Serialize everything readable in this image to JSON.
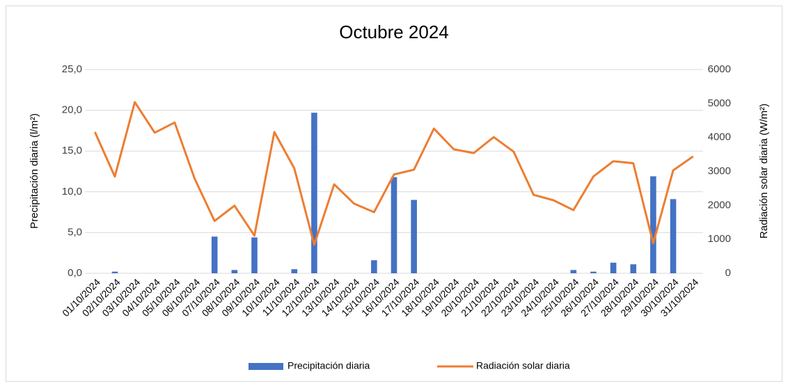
{
  "chart_data": {
    "type": "combo",
    "title": "Octubre 2024",
    "y_label": "Precipitación diaria (l/m²)",
    "y2_label": "Radiación solar diaria (W/m²)",
    "categories": [
      "01/10/2024",
      "02/10/2024",
      "03/10/2024",
      "04/10/2024",
      "05/10/2024",
      "06/10/2024",
      "07/10/2024",
      "08/10/2024",
      "09/10/2024",
      "10/10/2024",
      "11/10/2024",
      "12/10/2024",
      "13/10/2024",
      "14/10/2024",
      "15/10/2024",
      "16/10/2024",
      "17/10/2024",
      "18/10/2024",
      "19/10/2024",
      "20/10/2024",
      "21/10/2024",
      "22/10/2024",
      "23/10/2024",
      "24/10/2024",
      "25/10/2024",
      "26/10/2024",
      "27/10/2024",
      "28/10/2024",
      "29/10/2024",
      "30/10/2024",
      "31/10/2024"
    ],
    "series": [
      {
        "name": "Precipitación diaria",
        "type": "bar",
        "axis": "y",
        "color": "#4472c4",
        "values": [
          0,
          0.2,
          0,
          0,
          0,
          0,
          4.5,
          0.4,
          4.4,
          0,
          0.5,
          19.7,
          0,
          0,
          1.6,
          11.8,
          9.0,
          0,
          0,
          0,
          0,
          0,
          0,
          0,
          0.4,
          0.2,
          1.3,
          1.1,
          11.9,
          9.1,
          0
        ]
      },
      {
        "name": "Radiación solar diaria",
        "type": "line",
        "axis": "y2",
        "color": "#ed7d31",
        "values": [
          4160,
          2850,
          5040,
          4140,
          4440,
          2790,
          1540,
          1990,
          1110,
          4160,
          3090,
          840,
          2620,
          2050,
          1800,
          2910,
          3050,
          4260,
          3650,
          3540,
          4010,
          3580,
          2310,
          2150,
          1860,
          2850,
          3300,
          3240,
          880,
          3030,
          3440
        ]
      }
    ],
    "ylim": [
      0,
      25
    ],
    "yticks": [
      {
        "value": 0,
        "label": "0,0"
      },
      {
        "value": 5,
        "label": "5,0"
      },
      {
        "value": 10,
        "label": "10,0"
      },
      {
        "value": 15,
        "label": "15,0"
      },
      {
        "value": 20,
        "label": "20,0"
      },
      {
        "value": 25,
        "label": "25,0"
      }
    ],
    "y2lim": [
      0,
      6000
    ],
    "y2ticks": [
      0,
      1000,
      2000,
      3000,
      4000,
      5000,
      6000
    ],
    "grid": true,
    "legend": "bottom"
  }
}
